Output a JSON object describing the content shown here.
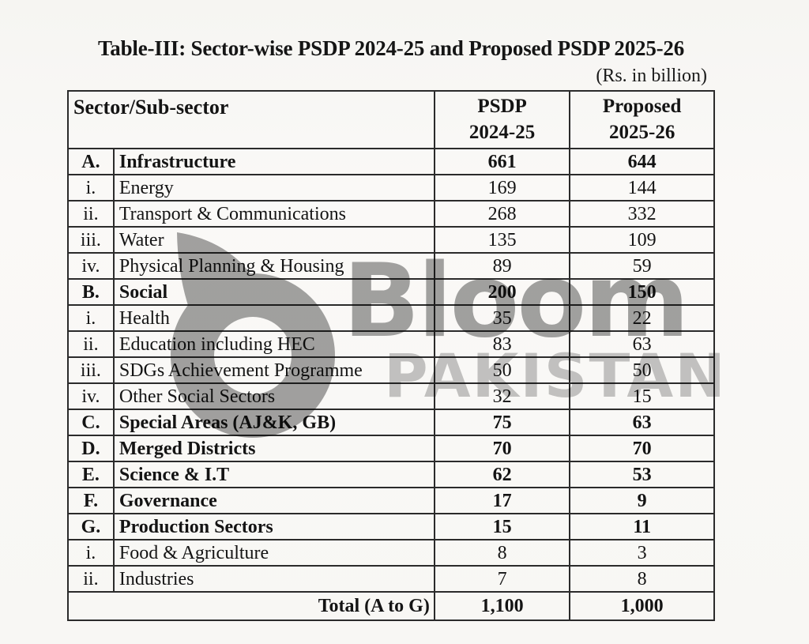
{
  "document": {
    "title": "Table-III: Sector-wise PSDP 2024-25 and Proposed PSDP 2025-26",
    "unit_note": "(Rs. in billion)"
  },
  "table": {
    "header": {
      "sector": "Sector/Sub-sector",
      "psdp_line1": "PSDP",
      "psdp_line2": "2024-25",
      "proposed_line1": "Proposed",
      "proposed_line2": "2025-26"
    },
    "rows": [
      {
        "prefix": "A.",
        "name": "Infrastructure",
        "psdp": "661",
        "proposed": "644",
        "bold": true
      },
      {
        "prefix": "i.",
        "name": "Energy",
        "psdp": "169",
        "proposed": "144",
        "bold": false
      },
      {
        "prefix": "ii.",
        "name": "Transport & Communications",
        "psdp": "268",
        "proposed": "332",
        "bold": false
      },
      {
        "prefix": "iii.",
        "name": "Water",
        "psdp": "135",
        "proposed": "109",
        "bold": false
      },
      {
        "prefix": "iv.",
        "name": "Physical Planning & Housing",
        "psdp": "89",
        "proposed": "59",
        "bold": false
      },
      {
        "prefix": "B.",
        "name": "Social",
        "psdp": "200",
        "proposed": "150",
        "bold": true
      },
      {
        "prefix": "i.",
        "name": "Health",
        "psdp": "35",
        "proposed": "22",
        "bold": false
      },
      {
        "prefix": "ii.",
        "name": "Education including HEC",
        "psdp": "83",
        "proposed": "63",
        "bold": false
      },
      {
        "prefix": "iii.",
        "name": "SDGs Achievement Programme",
        "psdp": "50",
        "proposed": "50",
        "bold": false
      },
      {
        "prefix": "iv.",
        "name": "Other Social Sectors",
        "psdp": "32",
        "proposed": "15",
        "bold": false
      },
      {
        "prefix": "C.",
        "name": "Special Areas (AJ&K, GB)",
        "psdp": "75",
        "proposed": "63",
        "bold": true
      },
      {
        "prefix": "D.",
        "name": "Merged Districts",
        "psdp": "70",
        "proposed": "70",
        "bold": true
      },
      {
        "prefix": "E.",
        "name": "Science & I.T",
        "psdp": "62",
        "proposed": "53",
        "bold": true
      },
      {
        "prefix": "F.",
        "name": "Governance",
        "psdp": "17",
        "proposed": "9",
        "bold": true
      },
      {
        "prefix": "G.",
        "name": "Production Sectors",
        "psdp": "15",
        "proposed": "11",
        "bold": true
      },
      {
        "prefix": "i.",
        "name": "Food & Agriculture",
        "psdp": "8",
        "proposed": "3",
        "bold": false
      },
      {
        "prefix": "ii.",
        "name": "Industries",
        "psdp": "7",
        "proposed": "8",
        "bold": false
      }
    ],
    "total_row": {
      "label": "Total (A to G)",
      "psdp": "1,100",
      "proposed": "1,000"
    }
  },
  "watermark": {
    "logo_icon": "bloom-b-logo",
    "brand": "Bloom",
    "country": "PAKISTAN",
    "colors": {
      "logo": "#a4a4a4",
      "brand": "#a4a4a4",
      "country": "#c6c6c6"
    }
  }
}
